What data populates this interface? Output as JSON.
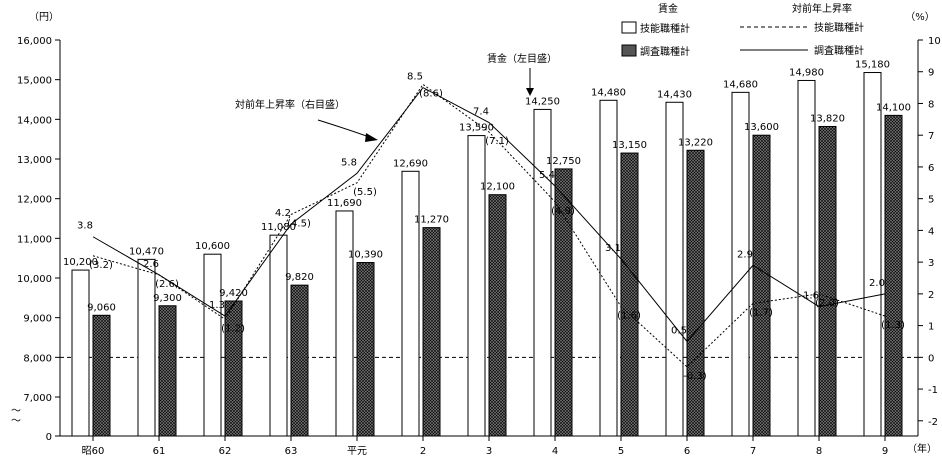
{
  "chart_data": {
    "type": "bar",
    "categories": [
      "昭60",
      "61",
      "62",
      "63",
      "平元",
      "2",
      "3",
      "4",
      "5",
      "6",
      "7",
      "8",
      "9"
    ],
    "y_left_unit": "（円）",
    "y_right_unit": "（%）",
    "x_unit": "（年）",
    "y_left_ticks": [
      "0",
      "7,000",
      "8,000",
      "9,000",
      "10,000",
      "11,000",
      "12,000",
      "13,000",
      "14,000",
      "15,000",
      "16,000"
    ],
    "y_left_break": "〜",
    "y_right_ticks": [
      "-2",
      "-1",
      "0",
      "1",
      "2",
      "3",
      "4",
      "5",
      "6",
      "7",
      "8",
      "9",
      "10"
    ],
    "ylim_left": [
      7000,
      16000
    ],
    "ylim_right": [
      -1,
      10
    ],
    "series": [
      {
        "name": "技能職種計",
        "kind": "bar",
        "fill": "#ffffff",
        "values": [
          10200,
          10470,
          10600,
          11080,
          11690,
          12690,
          13590,
          14250,
          14480,
          14430,
          14680,
          14980,
          15180
        ],
        "labels": [
          "10,200",
          "10,470",
          "10,600",
          "11,080",
          "11,690",
          "12,690",
          "13,590",
          "14,250",
          "14,480",
          "14,430",
          "14,680",
          "14,980",
          "15,180"
        ]
      },
      {
        "name": "調査職種計",
        "kind": "bar",
        "fill": "#555555",
        "values": [
          9060,
          9300,
          9420,
          9820,
          10390,
          11270,
          12100,
          12750,
          13150,
          13220,
          13600,
          13820,
          14100
        ],
        "labels": [
          "9,060",
          "9,300",
          "9,420",
          "9,820",
          "10,390",
          "11,270",
          "12,100",
          "12,750",
          "13,150",
          "13,220",
          "13,600",
          "13,820",
          "14,100"
        ]
      },
      {
        "name": "技能職種計",
        "kind": "line",
        "dash": "dotted",
        "values": [
          3.2,
          2.6,
          1.2,
          4.5,
          5.5,
          8.6,
          7.1,
          4.9,
          1.6,
          -0.3,
          1.7,
          2.0,
          1.3
        ],
        "labels": [
          "(3.2)",
          "(2.6)",
          "(1.2)",
          "(4.5)",
          "(5.5)",
          "(8.6)",
          "(7.1)",
          "(4.9)",
          "(1.6)",
          "-0.3)",
          "(1.7)",
          "(2.0)",
          "(1.3)"
        ]
      },
      {
        "name": "調査職種計",
        "kind": "line",
        "dash": "solid",
        "values": [
          3.8,
          2.6,
          1.3,
          4.2,
          5.8,
          8.5,
          7.4,
          5.4,
          3.1,
          0.5,
          2.9,
          1.6,
          2.0
        ],
        "labels": [
          "3.8",
          "2.6",
          "1.3",
          "4.2",
          "5.8",
          "8.5",
          "7.4",
          "5.4",
          "3.1",
          "0.5",
          "2.9",
          "1.6",
          "2.0"
        ]
      }
    ],
    "legend": {
      "bars_heading": "賃金",
      "lines_heading": "対前年上昇率",
      "bar_items": [
        "技能職種計",
        "調査職種計"
      ],
      "line_items": [
        "技能職種計",
        "調査職種計"
      ],
      "placement": "top-right"
    },
    "annotations": [
      {
        "text": "賃金（左目盛）"
      },
      {
        "text": "対前年上昇率（右目盛）"
      }
    ],
    "grid": false
  }
}
